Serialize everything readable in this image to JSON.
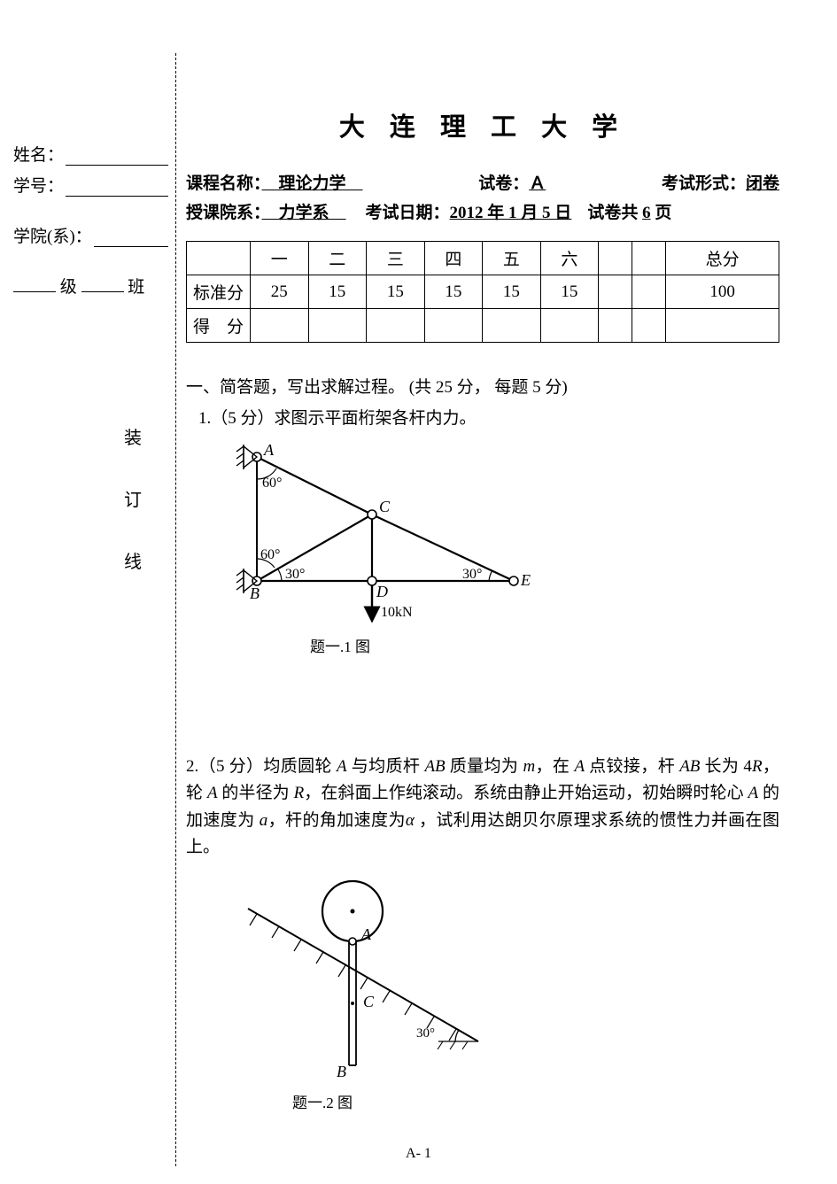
{
  "sidebar": {
    "name_label": "姓名：",
    "id_label": "学号：",
    "dept_label": "学院(系)：",
    "class_prefix": "",
    "class_mid": "级",
    "class_suffix": "班",
    "bind1": "装",
    "bind2": "订",
    "bind3": "线"
  },
  "header": {
    "university": "大 连 理 工 大 学",
    "line1_course_label": "课程名称：",
    "line1_course_val": "　理论力学　",
    "line1_paper_label": "试卷：",
    "line1_paper_val": "Ａ",
    "line1_type_label": "考试形式：",
    "line1_type_val": "闭卷",
    "line2_dept_label": "授课院系：",
    "line2_dept_val": "　力学系　",
    "line2_date_label": "考试日期：",
    "line2_date_val": "2012 年 1 月 5 日",
    "line2_pages_label": "试卷共",
    "line2_pages_val": "6",
    "line2_pages_suffix": "页"
  },
  "score_table": {
    "cols": [
      "",
      "一",
      "二",
      "三",
      "四",
      "五",
      "六",
      "",
      "",
      "总分"
    ],
    "row1_label": "标准分",
    "row1_vals": [
      "25",
      "15",
      "15",
      "15",
      "15",
      "15",
      "",
      "",
      "100"
    ],
    "row2_label": "得　分",
    "row2_vals": [
      "",
      "",
      "",
      "",
      "",
      "",
      "",
      "",
      ""
    ]
  },
  "q1": {
    "section": "一、简答题，写出求解过程。 (共 25 分，  每题 5 分)",
    "text": "1.（5 分）求图示平面桁架各杆内力。",
    "caption": "题一.1 图",
    "fig": {
      "A": "A",
      "B": "B",
      "C": "C",
      "D": "D",
      "E": "E",
      "ang60": "60°",
      "ang30": "30°",
      "load": "10kN",
      "stroke": "#000000",
      "fontsize": 17
    }
  },
  "q2": {
    "text_parts": [
      "2.（5 分）均质圆轮 ",
      {
        "i": "A"
      },
      " 与均质杆 ",
      {
        "i": "AB"
      },
      " 质量均为 ",
      {
        "i": "m"
      },
      "，在 ",
      {
        "i": "A"
      },
      " 点铰接，杆 ",
      {
        "i": "AB"
      },
      " 长为 4",
      {
        "i": "R"
      },
      "，轮 ",
      {
        "i": "A"
      },
      " 的半径为 ",
      {
        "i": "R"
      },
      "，在斜面上作纯滚动。系统由静止开始运动，初始瞬时轮心 ",
      {
        "i": "A"
      },
      " 的加速度为 ",
      {
        "i": "a"
      },
      "，杆的角加速度为",
      {
        "i": "α"
      },
      " ，试利用达朗贝尔原理求系统的惯性力并画在图上。"
    ],
    "caption": "题一.2 图",
    "fig": {
      "A": "A",
      "B": "B",
      "C": "C",
      "ang30": "30°"
    }
  },
  "pagenum": "A- 1"
}
